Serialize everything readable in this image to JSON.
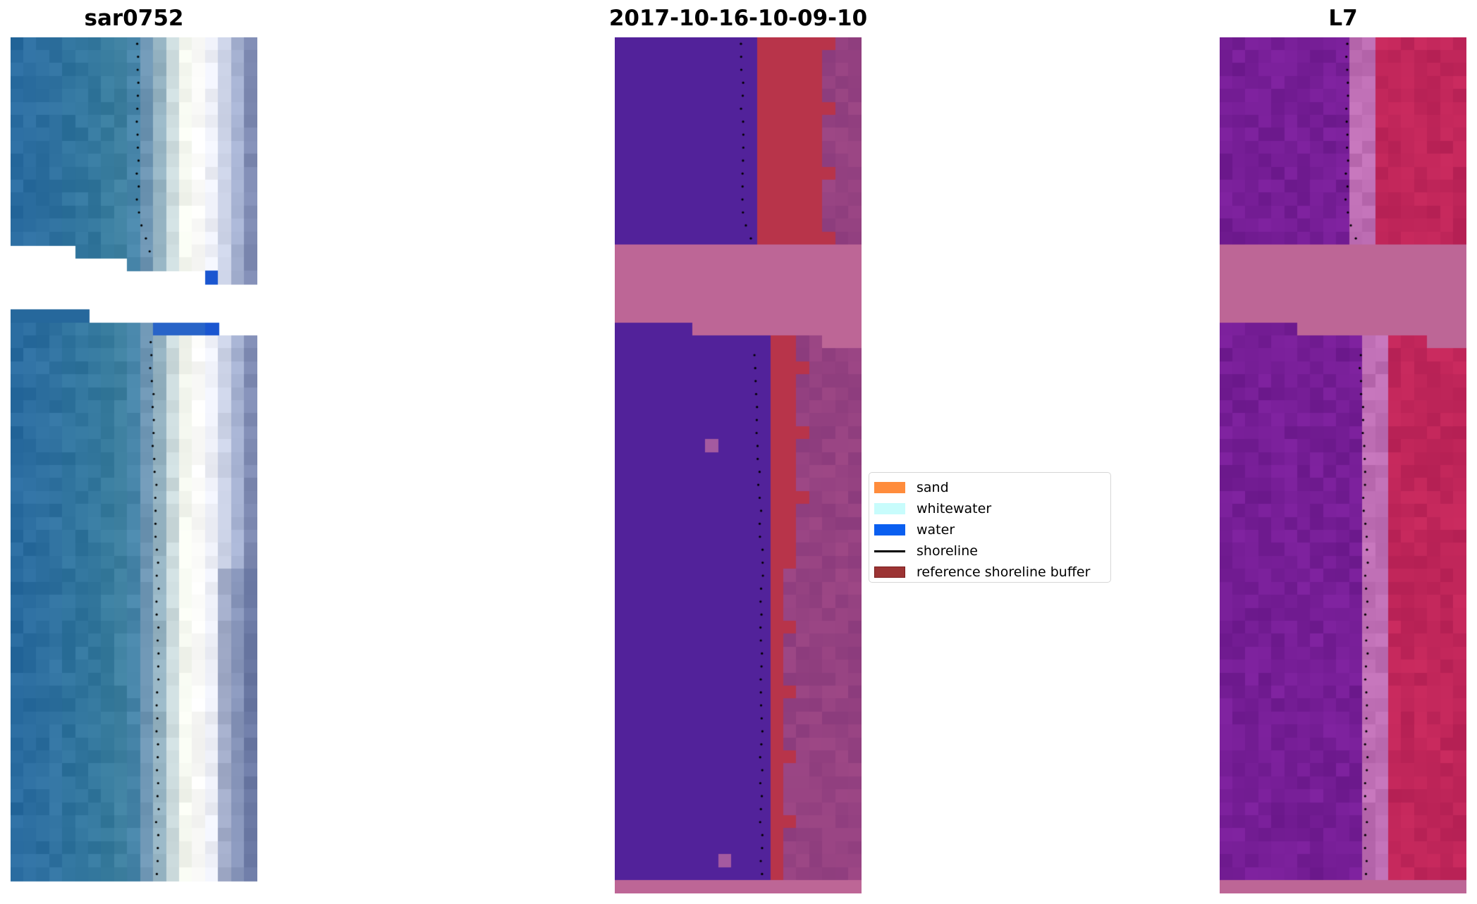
{
  "panels": [
    {
      "title": "sar0752",
      "kind": "rgb"
    },
    {
      "title": "2017-10-16-10-09-10",
      "kind": "classified"
    },
    {
      "title": "L7",
      "kind": "mndwi"
    }
  ],
  "legend": {
    "items": [
      {
        "label": "sand",
        "type": "patch",
        "color": "#ff8c3c"
      },
      {
        "label": "whitewater",
        "type": "patch",
        "color": "#c8fcfc"
      },
      {
        "label": "water",
        "type": "patch",
        "color": "#0a5ff0"
      },
      {
        "label": "shoreline",
        "type": "line",
        "color": "#000000"
      },
      {
        "label": "reference shoreline buffer",
        "type": "patch",
        "color": "#9c3434",
        "edge": "#7a1c1c"
      }
    ]
  }
}
